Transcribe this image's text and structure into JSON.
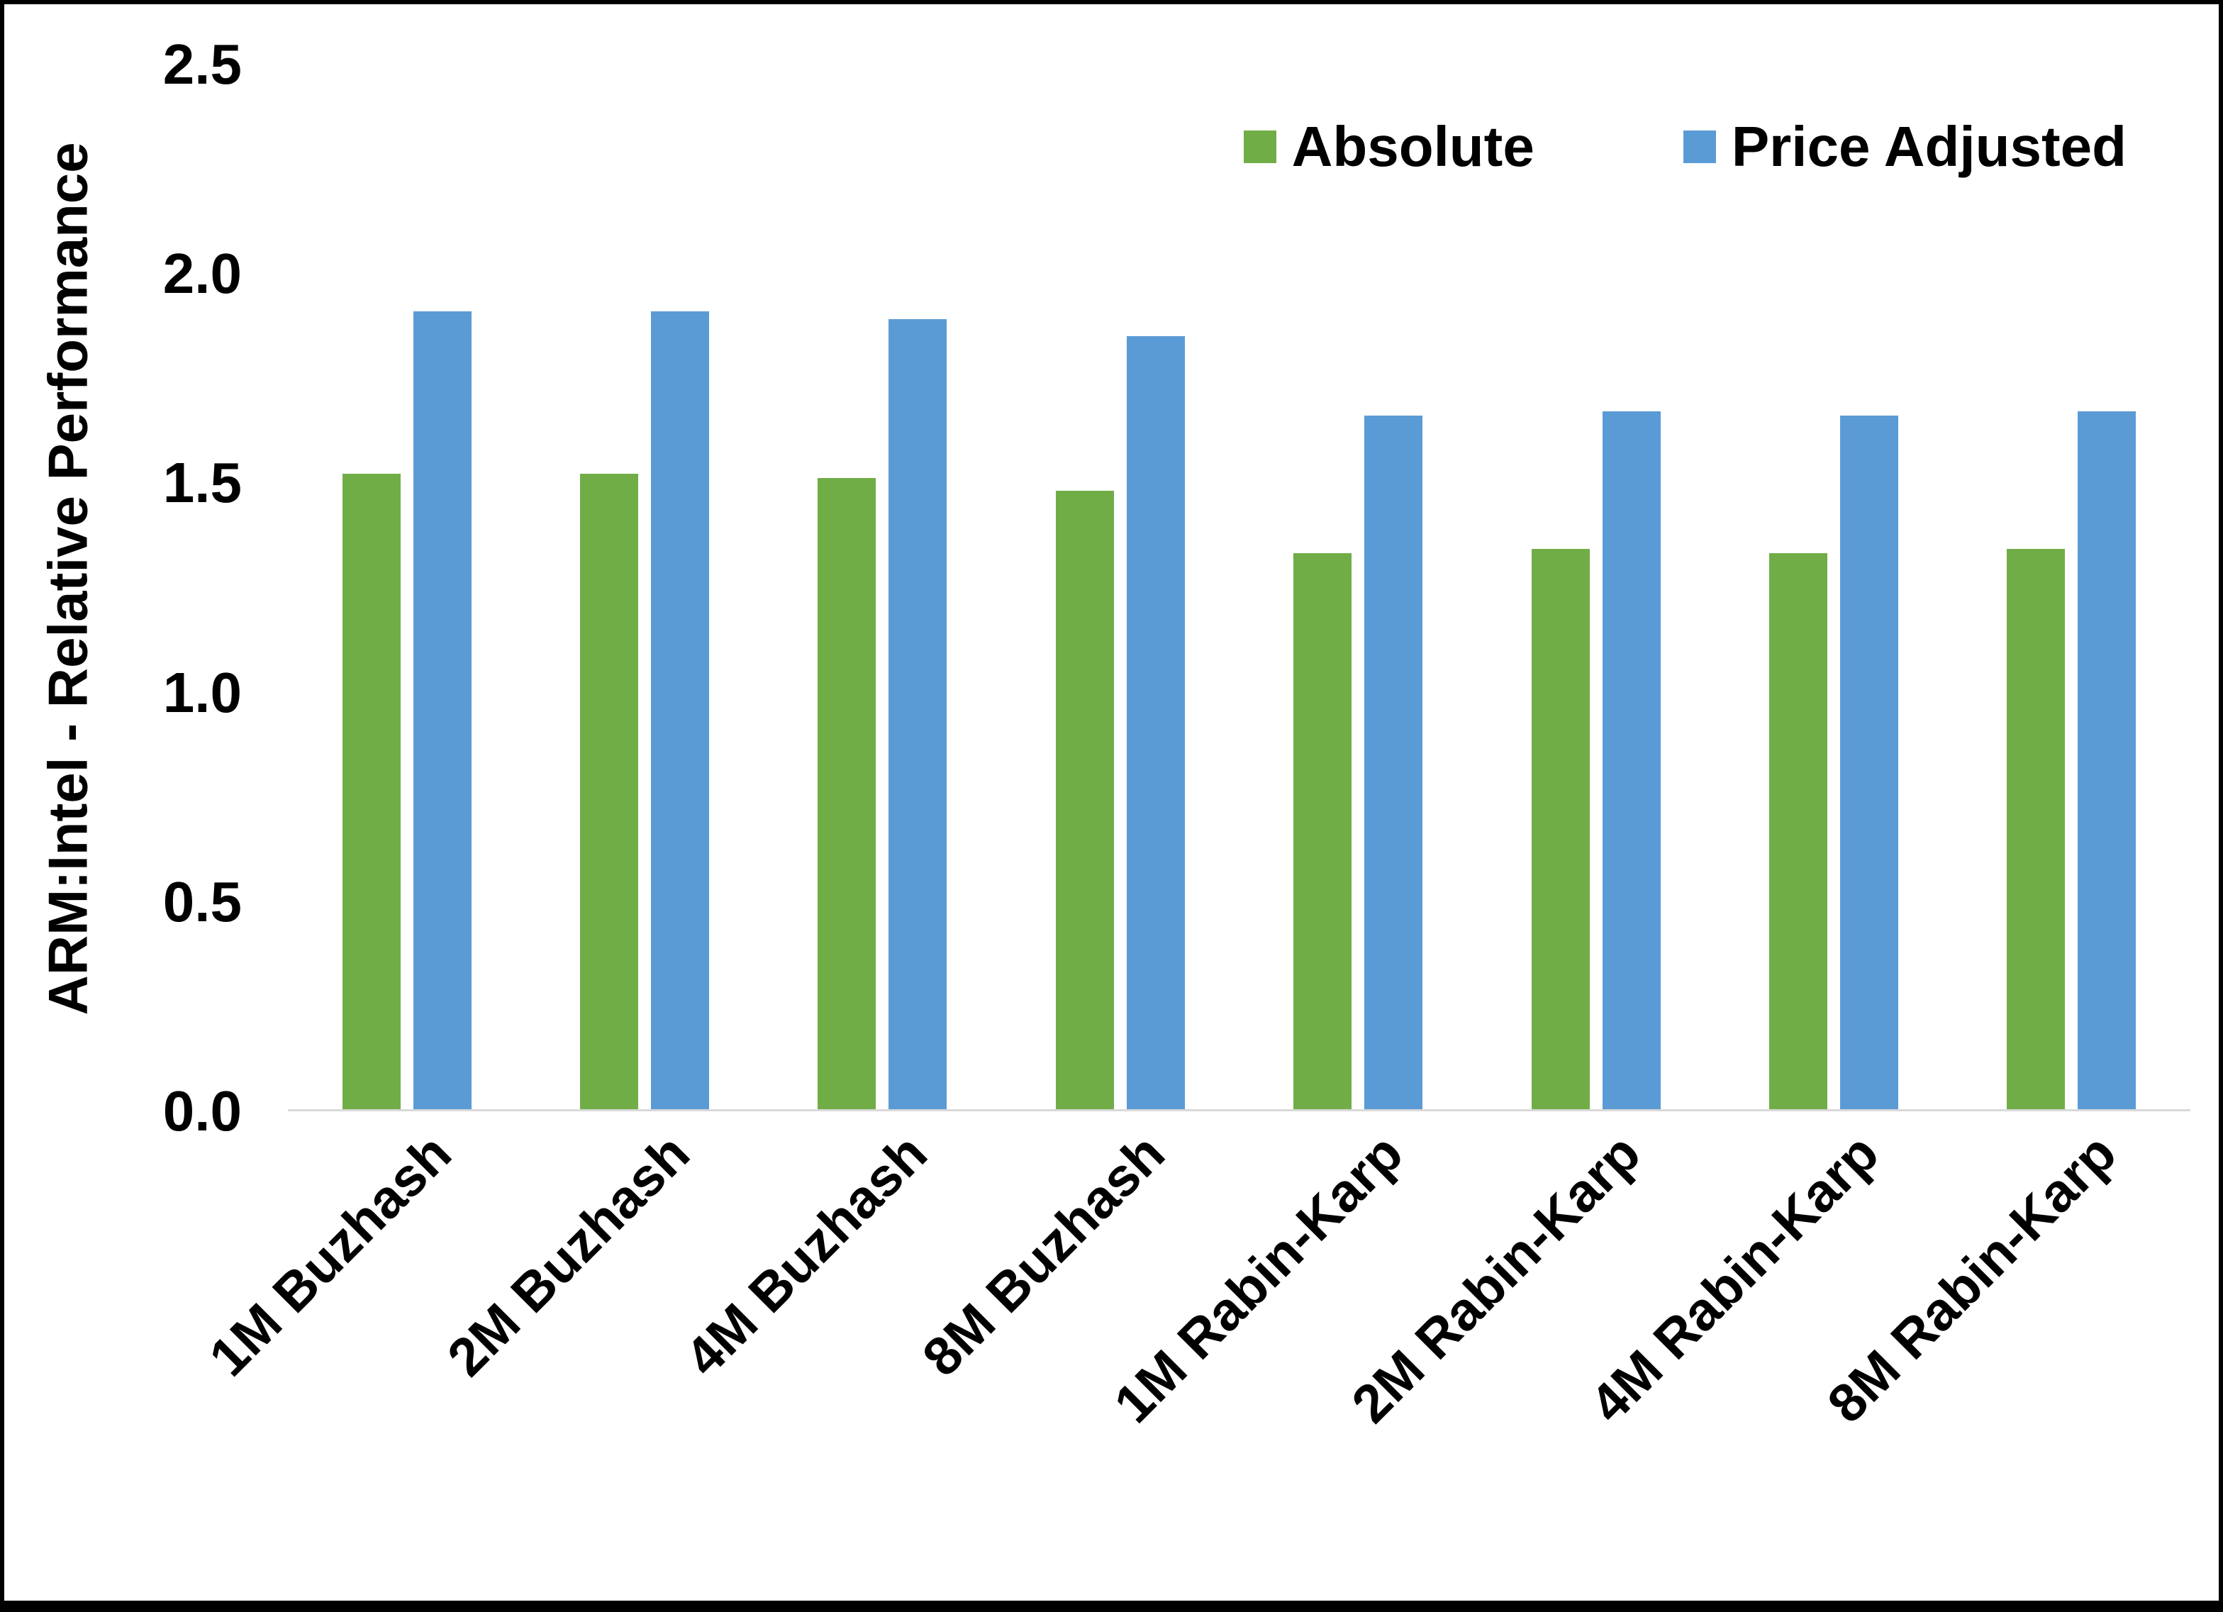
{
  "chart_data": {
    "type": "bar",
    "title": "",
    "xlabel": "",
    "ylabel": "ARM:Intel - Relative Performance",
    "ylim": [
      0,
      2.5
    ],
    "ytick_labels": [
      "0.0",
      "0.5",
      "1.0",
      "1.5",
      "2.0",
      "2.5"
    ],
    "grid": false,
    "legend_position": "top-right",
    "categories": [
      "1M Buzhash",
      "2M Buzhash",
      "4M Buzhash",
      "8M Buzhash",
      "1M Rabin-Karp",
      "2M Rabin-Karp",
      "4M Rabin-Karp",
      "8M Rabin-Karp"
    ],
    "series": [
      {
        "name": "Absolute",
        "color": "#70AD47",
        "values": [
          1.52,
          1.52,
          1.51,
          1.48,
          1.33,
          1.34,
          1.33,
          1.34
        ]
      },
      {
        "name": "Price Adjusted",
        "color": "#5B9BD5",
        "values": [
          1.91,
          1.91,
          1.89,
          1.85,
          1.66,
          1.67,
          1.66,
          1.67
        ]
      }
    ]
  },
  "colors": {
    "absolute": "#70AD47",
    "price_adjusted": "#5B9BD5",
    "axis_line": "#d9d9d9",
    "frame_border": "#000000"
  }
}
